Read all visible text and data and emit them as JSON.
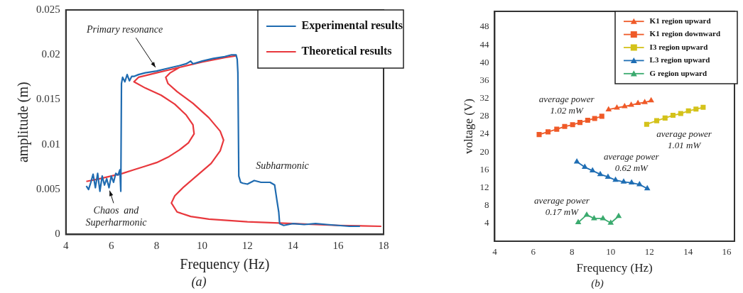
{
  "chart_data": [
    {
      "type": "line",
      "title": "(a)",
      "xlabel": "Frequency (Hz)",
      "ylabel": "amplitude (m)",
      "xlim": [
        4,
        18
      ],
      "xticks": [
        4,
        6,
        8,
        10,
        12,
        14,
        16,
        18
      ],
      "ylim": [
        0,
        0.025
      ],
      "yticks": [
        0,
        0.005,
        0.01,
        0.015,
        0.02,
        0.025
      ],
      "legend": "top right",
      "marker": "none",
      "grid": false,
      "series": [
        {
          "name": "Experimental results",
          "color": "#1f6bb0",
          "x": [
            4.9,
            5.0,
            5.1,
            5.2,
            5.3,
            5.4,
            5.5,
            5.6,
            5.7,
            5.8,
            5.9,
            6.0,
            6.1,
            6.2,
            6.3,
            6.38,
            6.42,
            6.45,
            6.5,
            6.6,
            6.7,
            6.8,
            6.9,
            7.0,
            7.2,
            7.5,
            8.0,
            8.5,
            9.0,
            9.3,
            9.5,
            9.6,
            10.0,
            10.5,
            11.0,
            11.3,
            11.5,
            11.55,
            11.58,
            11.62,
            11.7,
            11.8,
            12.0,
            12.3,
            12.6,
            13.0,
            13.2,
            13.3,
            13.38,
            13.42,
            13.6,
            14.0,
            14.5,
            15.0,
            15.5,
            16.0,
            16.5,
            16.96
          ],
          "values": [
            0.0054,
            0.005,
            0.0058,
            0.0067,
            0.0052,
            0.0068,
            0.0048,
            0.0065,
            0.0055,
            0.0062,
            0.0052,
            0.0065,
            0.0058,
            0.0068,
            0.0066,
            0.0072,
            0.0048,
            0.0168,
            0.0175,
            0.017,
            0.0178,
            0.0171,
            0.0176,
            0.0176,
            0.0178,
            0.018,
            0.0182,
            0.0185,
            0.0188,
            0.019,
            0.0193,
            0.019,
            0.0193,
            0.0196,
            0.0198,
            0.02,
            0.02,
            0.0195,
            0.018,
            0.0065,
            0.0058,
            0.0057,
            0.0056,
            0.006,
            0.0058,
            0.0058,
            0.0055,
            0.0038,
            0.0025,
            0.0012,
            0.001,
            0.0012,
            0.0011,
            0.0012,
            0.0011,
            0.001,
            0.0009,
            0.0009
          ]
        },
        {
          "name": "Theoretical results",
          "color": "#e8383d",
          "x": [
            4.9,
            5.5,
            6.0,
            6.5,
            7.0,
            7.5,
            8.0,
            8.5,
            9.0,
            9.4,
            9.65,
            9.6,
            9.3,
            8.8,
            8.2,
            7.5,
            7.0,
            7.2,
            8.0,
            9.0,
            10.0,
            11.0,
            11.5,
            null,
            9.0,
            8.6,
            8.4,
            8.5,
            8.9,
            9.6,
            10.3,
            10.8,
            10.95,
            10.8,
            10.4,
            9.8,
            9.2,
            8.8,
            8.65,
            8.9,
            9.5,
            10.3,
            12.0,
            14.0,
            16.0,
            17.9
          ],
          "values": [
            0.0059,
            0.0062,
            0.0065,
            0.0068,
            0.0072,
            0.0076,
            0.008,
            0.0086,
            0.0094,
            0.0102,
            0.0112,
            0.0122,
            0.0133,
            0.0145,
            0.0155,
            0.0163,
            0.017,
            0.0175,
            0.018,
            0.0186,
            0.0192,
            0.0197,
            0.0199,
            null,
            0.0186,
            0.018,
            0.0175,
            0.0168,
            0.0159,
            0.0146,
            0.013,
            0.0115,
            0.0105,
            0.0093,
            0.0079,
            0.0066,
            0.0053,
            0.0043,
            0.0035,
            0.0025,
            0.002,
            0.0017,
            0.0014,
            0.0012,
            0.001,
            0.0009
          ]
        }
      ],
      "annotations": [
        {
          "text": "Primary resonance",
          "x": 8.0,
          "y": 0.0184
        },
        {
          "text": "Subharmonic",
          "x": 12.6,
          "y": 0.006
        },
        {
          "text": "Chaos  and\nSuperharmonic",
          "x": 5.9,
          "y": 0.0051
        }
      ]
    },
    {
      "type": "line",
      "title": "(b)",
      "xlabel": "Frequency (Hz)",
      "ylabel": "voltage (V)",
      "xlim": [
        4,
        16.4
      ],
      "xticks": [
        4,
        6,
        8,
        10,
        12,
        14,
        16
      ],
      "ylim": [
        0,
        51.5
      ],
      "yticks": [
        4,
        8,
        12,
        16,
        20,
        24,
        28,
        32,
        36,
        40,
        44,
        48
      ],
      "legend": "top right",
      "grid": false,
      "series": [
        {
          "name": "K1 region upward",
          "color": "#ef5a28",
          "marker": "triangle",
          "x": [
            9.89,
            10.32,
            10.72,
            11.06,
            11.41,
            11.76,
            12.09
          ],
          "values": [
            29.5,
            29.9,
            30.2,
            30.5,
            30.9,
            31.1,
            31.5
          ]
        },
        {
          "name": "K1 region downward",
          "color": "#ef5a28",
          "marker": "square",
          "x": [
            6.3,
            6.76,
            7.21,
            7.62,
            8.03,
            8.41,
            8.81,
            9.17,
            9.54
          ],
          "values": [
            23.9,
            24.5,
            25.1,
            25.7,
            26.1,
            26.6,
            27.1,
            27.5,
            28.0
          ]
        },
        {
          "name": "I3 region upward",
          "color": "#d4c21a",
          "marker": "square",
          "x": [
            11.86,
            12.38,
            12.81,
            13.22,
            13.62,
            14.02,
            14.41,
            14.78
          ],
          "values": [
            26.2,
            27.0,
            27.6,
            28.2,
            28.6,
            29.2,
            29.6,
            30.0
          ]
        },
        {
          "name": "L3 region upward",
          "color": "#1f6eb4",
          "marker": "triangle",
          "x": [
            8.25,
            8.66,
            9.06,
            9.46,
            9.86,
            10.25,
            10.67,
            11.08,
            11.49,
            11.89
          ],
          "values": [
            17.8,
            16.6,
            15.8,
            15.0,
            14.4,
            13.7,
            13.3,
            13.1,
            12.7,
            11.8
          ]
        },
        {
          "name": "G region upward",
          "color": "#3aaa6e",
          "marker": "triangle",
          "x": [
            8.32,
            8.76,
            9.14,
            9.6,
            10.0,
            10.41
          ],
          "values": [
            4.2,
            5.9,
            5.1,
            5.1,
            4.1,
            5.6
          ]
        }
      ],
      "annotations": [
        "average power\n1.02 mW",
        "average power\n1.01 mW",
        "average power\n0.62 mW",
        "average power\n0.17 mW"
      ]
    }
  ]
}
